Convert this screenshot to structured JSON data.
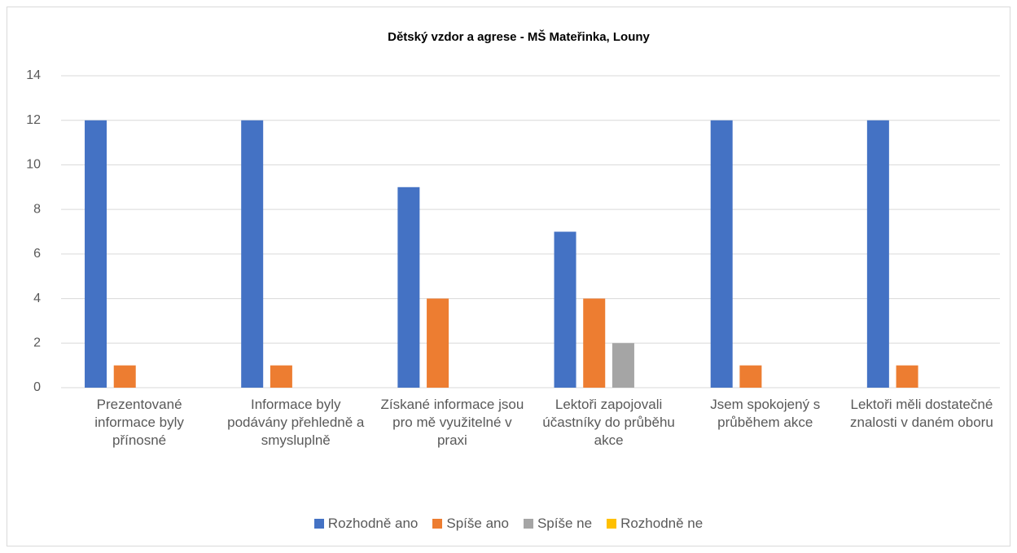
{
  "chart_data": {
    "type": "bar",
    "title": "Dětský vzdor a agrese - MŠ Mateřinka, Louny",
    "categories": [
      "Prezentované informace byly přínosné",
      "Informace byly podávány přehledně a smysluplně",
      "Získané informace jsou pro mě využitelné v praxi",
      "Lektoři zapojovali účastníky do průběhu akce",
      "Jsem spokojený s průběhem akce",
      "Lektoři měli dostatečné znalosti v daném oboru"
    ],
    "series": [
      {
        "name": "Rozhodně ano",
        "color": "#4472c4",
        "values": [
          12,
          12,
          9,
          7,
          12,
          12
        ]
      },
      {
        "name": "Spíše ano",
        "color": "#ed7d31",
        "values": [
          1,
          1,
          4,
          4,
          1,
          1
        ]
      },
      {
        "name": "Spíše ne",
        "color": "#a5a5a5",
        "values": [
          0,
          0,
          0,
          2,
          0,
          0
        ]
      },
      {
        "name": "Rozhodně ne",
        "color": "#ffc000",
        "values": [
          0,
          0,
          0,
          0,
          0,
          0
        ]
      }
    ],
    "ylim": [
      0,
      14
    ],
    "yticks": [
      0,
      2,
      4,
      6,
      8,
      10,
      12,
      14
    ],
    "grid": true,
    "legend": "bottom"
  }
}
